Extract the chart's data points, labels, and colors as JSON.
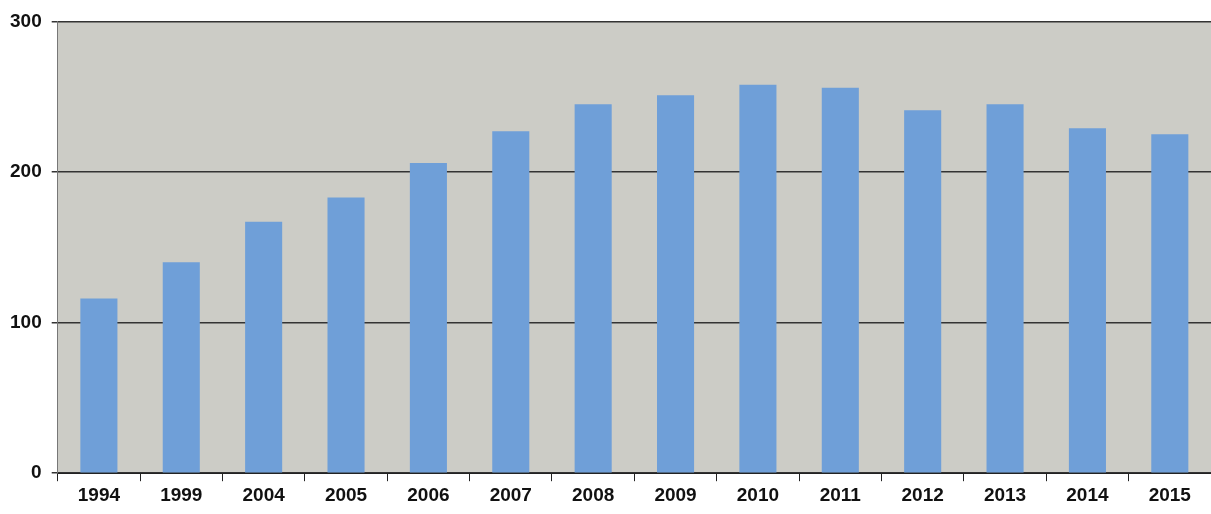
{
  "chart_data": {
    "type": "bar",
    "categories": [
      "1994",
      "1999",
      "2004",
      "2005",
      "2006",
      "2007",
      "2008",
      "2009",
      "2010",
      "2011",
      "2012",
      "2013",
      "2014",
      "2015"
    ],
    "values": [
      116,
      140,
      167,
      183,
      206,
      227,
      245,
      251,
      258,
      256,
      241,
      245,
      229,
      225
    ],
    "color": "#6f9fd8",
    "ylim": [
      0,
      300
    ],
    "yticks": [
      0,
      100,
      200,
      300
    ],
    "grid": "y"
  }
}
